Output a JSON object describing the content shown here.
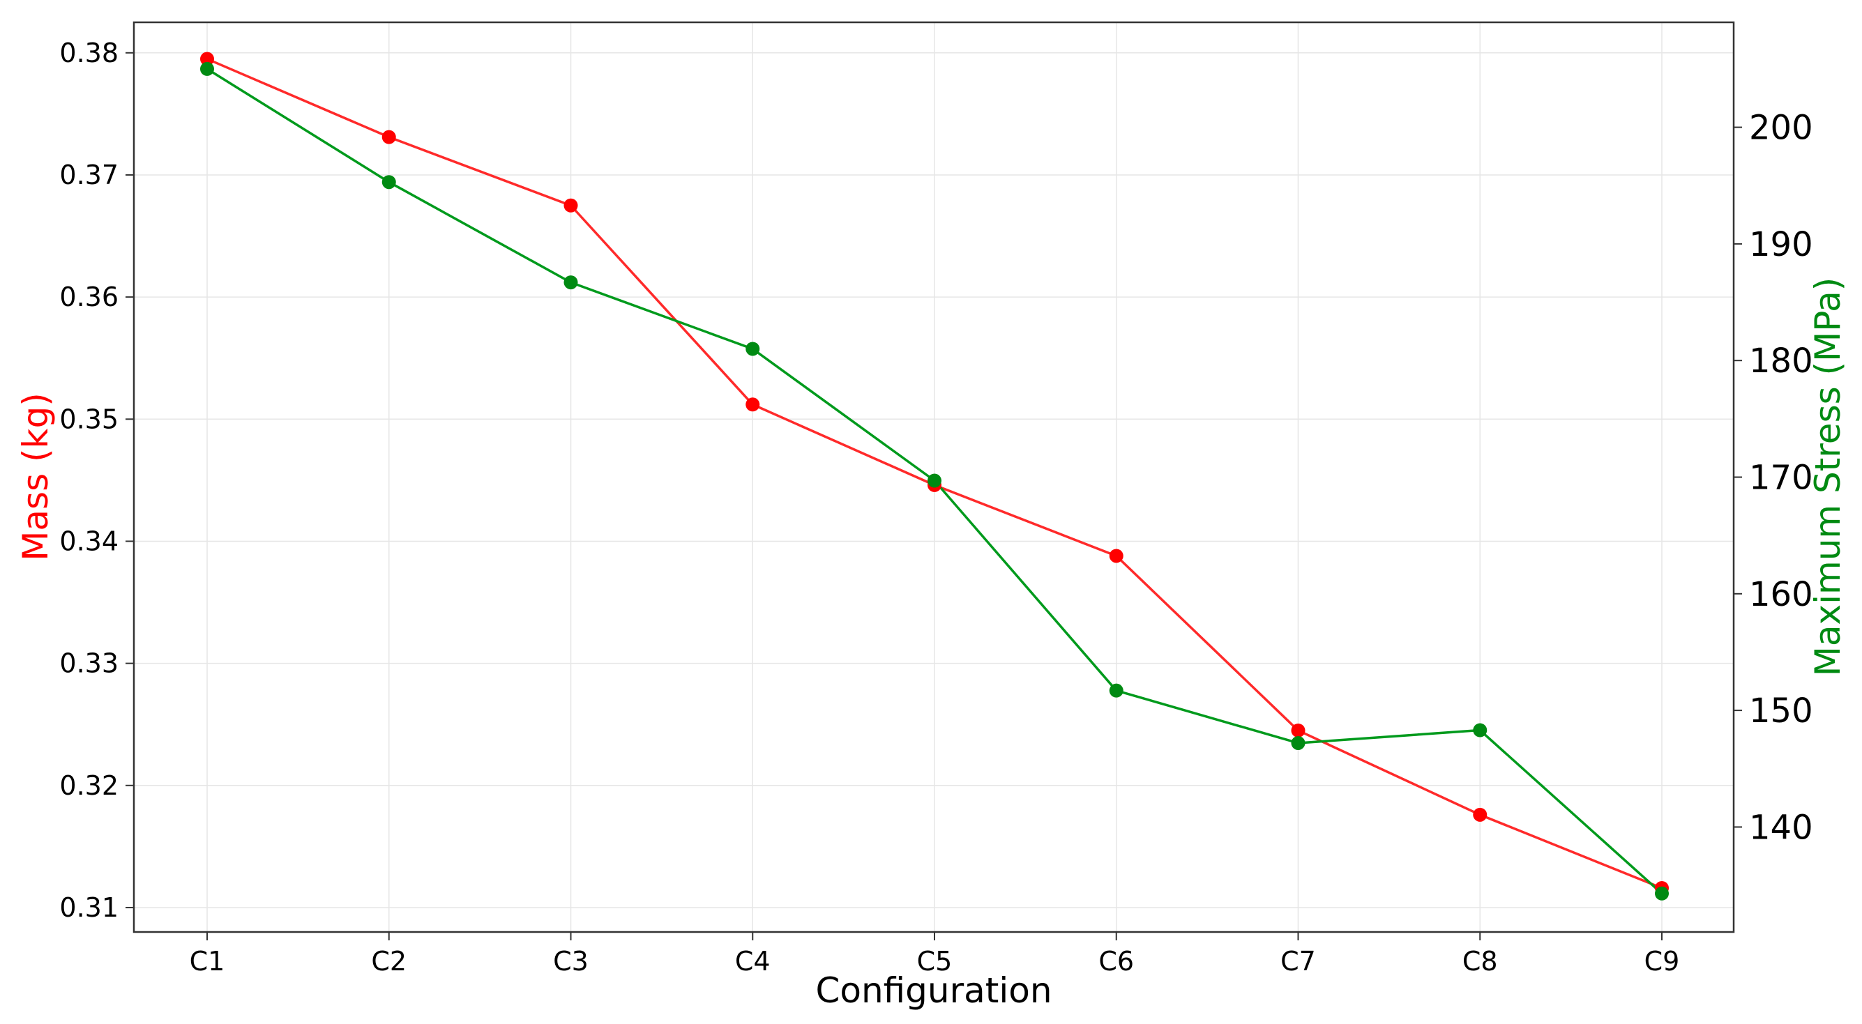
{
  "chart_data": {
    "type": "line",
    "title": "",
    "xlabel": "Configuration",
    "ylabel_left": "Mass (kg)",
    "ylabel_right": "Maximum Stress (MPa)",
    "categories": [
      "C1",
      "C2",
      "C3",
      "C4",
      "C5",
      "C6",
      "C7",
      "C8",
      "C9"
    ],
    "y_left_range": [
      0.308,
      0.3825
    ],
    "y_left_ticks": [
      "0.31",
      "0.32",
      "0.33",
      "0.34",
      "0.35",
      "0.36",
      "0.37",
      "0.38"
    ],
    "y_left_tick_values": [
      0.31,
      0.32,
      0.33,
      0.34,
      0.35,
      0.36,
      0.37,
      0.38
    ],
    "y_right_range": [
      131,
      209
    ],
    "y_right_ticks": [
      "140",
      "150",
      "160",
      "170",
      "180",
      "190",
      "200"
    ],
    "y_right_tick_values": [
      140,
      150,
      160,
      170,
      180,
      190,
      200
    ],
    "grid": true,
    "series": [
      {
        "axis": "left",
        "color": "#ff2a2a",
        "marker_color": "#ff0000",
        "values": [
          0.3795,
          0.3731,
          0.3675,
          0.3512,
          0.3446,
          0.3388,
          0.3245,
          0.3176,
          0.3116
        ]
      },
      {
        "axis": "right",
        "color": "#009a1c",
        "marker_color": "#008a12",
        "values": [
          205.0,
          195.3,
          186.7,
          181.0,
          169.7,
          151.7,
          147.2,
          148.3,
          134.3
        ]
      }
    ],
    "label_colors": {
      "left": "#ff0000",
      "right": "#008a12"
    }
  }
}
